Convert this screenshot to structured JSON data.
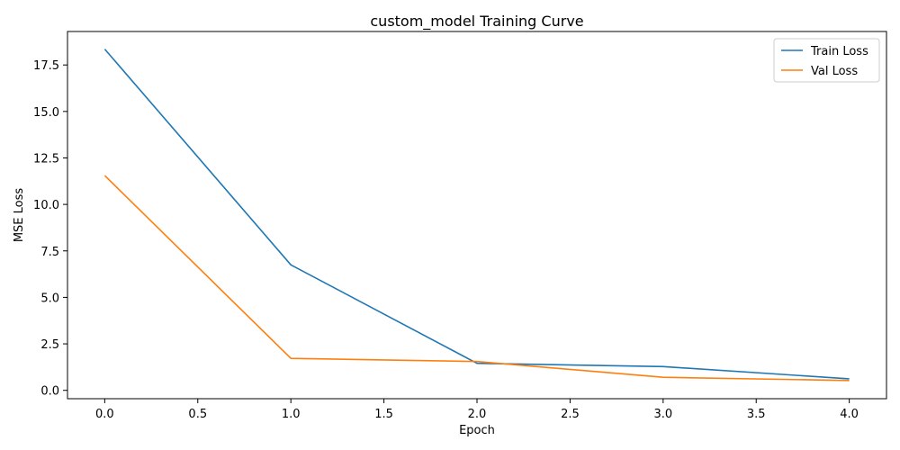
{
  "chart_data": {
    "type": "line",
    "title": "custom_model Training Curve",
    "xlabel": "Epoch",
    "ylabel": "MSE Loss",
    "xlim": [
      -0.2,
      4.2
    ],
    "ylim": [
      -0.45,
      19.3
    ],
    "xticks": [
      0.0,
      0.5,
      1.0,
      1.5,
      2.0,
      2.5,
      3.0,
      3.5,
      4.0
    ],
    "xtick_labels": [
      "0.0",
      "0.5",
      "1.0",
      "1.5",
      "2.0",
      "2.5",
      "3.0",
      "3.5",
      "4.0"
    ],
    "yticks": [
      0.0,
      2.5,
      5.0,
      7.5,
      10.0,
      12.5,
      15.0,
      17.5
    ],
    "ytick_labels": [
      "0.0",
      "2.5",
      "5.0",
      "7.5",
      "10.0",
      "12.5",
      "15.0",
      "17.5"
    ],
    "x": [
      0,
      1,
      2,
      3,
      4
    ],
    "series": [
      {
        "name": "Train Loss",
        "color": "#1f77b4",
        "values": [
          18.35,
          6.75,
          1.45,
          1.28,
          0.62
        ]
      },
      {
        "name": "Val Loss",
        "color": "#ff7f0e",
        "values": [
          11.55,
          1.72,
          1.55,
          0.7,
          0.53
        ]
      }
    ],
    "grid": false,
    "legend": "top-right"
  }
}
